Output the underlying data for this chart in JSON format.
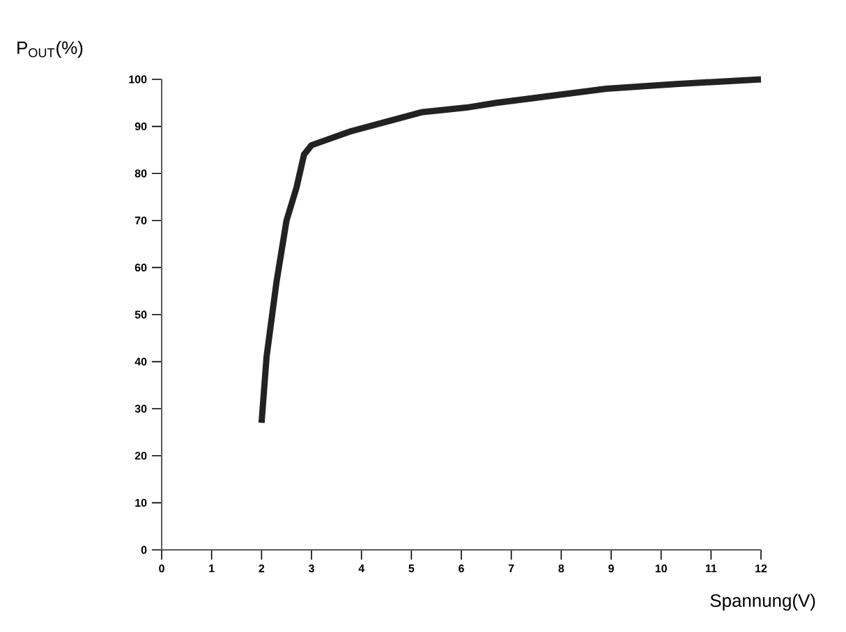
{
  "chart_data": {
    "type": "line",
    "ylabel": "P$_{OUT}$(%)",
    "xlabel": "Spannung(V)",
    "x": [
      2,
      2.1,
      2.3,
      2.5,
      2.7,
      2.85,
      3,
      3.8,
      4.5,
      5.2,
      6.1,
      6.7,
      8.9,
      10.3,
      12
    ],
    "series": [
      {
        "color": "#222222",
        "values": [
          27,
          41,
          57,
          70,
          77,
          84,
          86,
          89,
          91,
          93,
          94,
          95,
          98,
          99,
          100
        ]
      }
    ],
    "xlim": [
      0,
      12
    ],
    "xticks": [
      0,
      1,
      2,
      3,
      4,
      5,
      6,
      7,
      8,
      9,
      10,
      11,
      12
    ],
    "ylim": [
      0,
      100
    ],
    "yticks": [
      0,
      10,
      20,
      30,
      40,
      50,
      60,
      70,
      80,
      90,
      100
    ],
    "grid": false,
    "marker": "none",
    "line_style": "solid"
  }
}
